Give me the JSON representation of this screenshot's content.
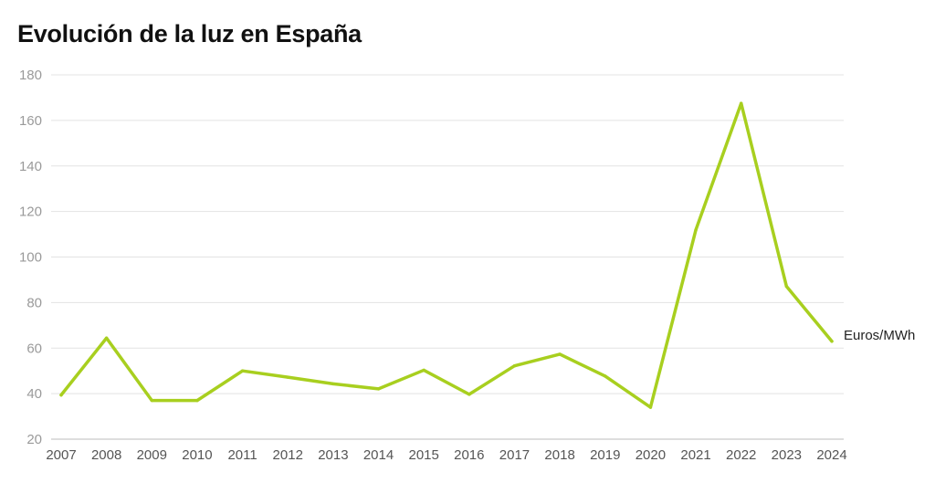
{
  "title": "Evolución de la luz en España",
  "colors": {
    "line": "#a8cf1f",
    "grid": "#e3e3e3",
    "axis": "#bdbdbd"
  },
  "chart_data": {
    "type": "line",
    "title": "Evolución de la luz en España",
    "categories": [
      "2007",
      "2008",
      "2009",
      "2010",
      "2011",
      "2012",
      "2013",
      "2014",
      "2015",
      "2016",
      "2017",
      "2018",
      "2019",
      "2020",
      "2021",
      "2022",
      "2023",
      "2024"
    ],
    "series": [
      {
        "name": "Euros/MWh",
        "values": [
          39.4,
          64.4,
          37.0,
          37.0,
          50.0,
          47.2,
          44.3,
          42.1,
          50.3,
          39.7,
          52.2,
          57.3,
          47.7,
          34.0,
          111.9,
          167.5,
          87.1,
          63.0
        ]
      }
    ],
    "ylim": [
      20,
      180
    ],
    "yticks": [
      20,
      40,
      60,
      80,
      100,
      120,
      140,
      160,
      180
    ],
    "grid": true,
    "legend": "end-of-line label"
  }
}
